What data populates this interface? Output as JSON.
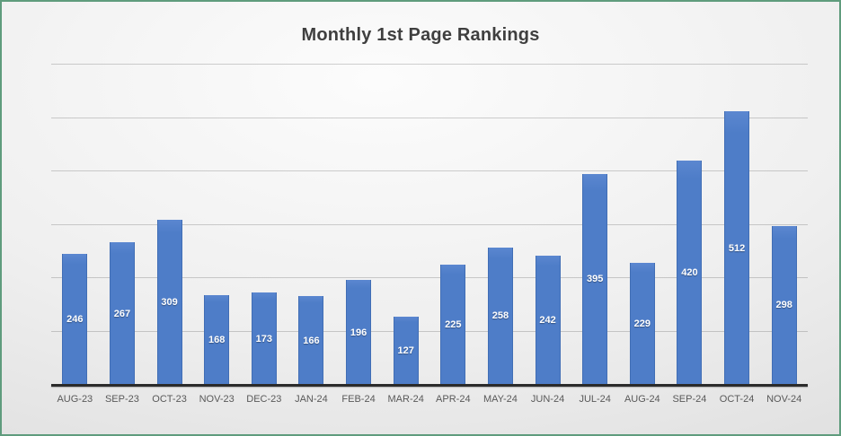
{
  "frame": {
    "border_color": "#5f9c7d",
    "background_center": "#fcfcfc",
    "background_edge": "#d6d6d6"
  },
  "chart_data": {
    "type": "bar",
    "title": "Monthly 1st Page Rankings",
    "categories": [
      "AUG-23",
      "SEP-23",
      "OCT-23",
      "NOV-23",
      "DEC-23",
      "JAN-24",
      "FEB-24",
      "MAR-24",
      "APR-24",
      "MAY-24",
      "JUN-24",
      "JUL-24",
      "AUG-24",
      "SEP-24",
      "OCT-24",
      "NOV-24"
    ],
    "values": [
      246,
      267,
      309,
      168,
      173,
      166,
      196,
      127,
      225,
      258,
      242,
      395,
      229,
      420,
      512,
      298
    ],
    "xlabel": "",
    "ylabel": "",
    "ylim": [
      0,
      600
    ],
    "gridline_interval": 100,
    "grid": true,
    "legend": false,
    "data_labels": "center-inside",
    "bar_color": "#4e7dc8",
    "bar_border_color": "#416eb5",
    "value_label_color": "#ffffff",
    "axis_line_color": "#2b2b2b",
    "category_label_color": "#595959",
    "title_color": "#3f3f3f"
  }
}
